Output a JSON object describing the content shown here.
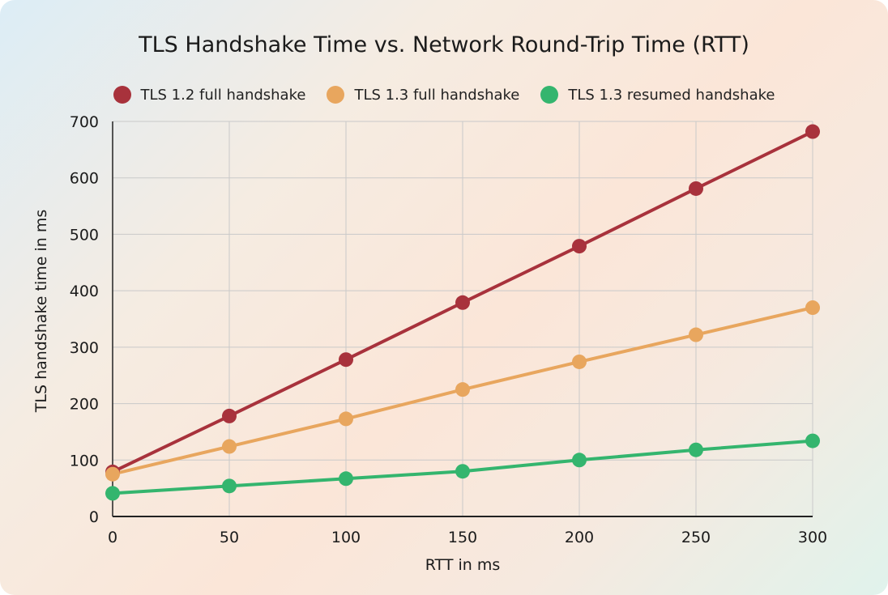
{
  "chart_data": {
    "type": "line",
    "title": "TLS Handshake Time vs. Network Round-Trip Time (RTT)",
    "xlabel": "RTT in ms",
    "ylabel": "TLS handshake time in ms",
    "x": [
      0,
      50,
      100,
      150,
      200,
      250,
      300
    ],
    "xlim": [
      0,
      300
    ],
    "ylim": [
      0,
      700
    ],
    "xticks": [
      0,
      50,
      100,
      150,
      200,
      250,
      300
    ],
    "yticks": [
      0,
      100,
      200,
      300,
      400,
      500,
      600,
      700
    ],
    "grid": true,
    "legend_position": "top",
    "series": [
      {
        "name": "TLS 1.2 full handshake",
        "color": "#a8323c",
        "values": [
          79,
          178,
          278,
          379,
          479,
          581,
          682
        ]
      },
      {
        "name": "TLS 1.3 full handshake",
        "color": "#e8a65e",
        "values": [
          75,
          124,
          173,
          225,
          274,
          322,
          370
        ]
      },
      {
        "name": "TLS 1.3 resumed handshake",
        "color": "#34b56e",
        "values": [
          41,
          54,
          67,
          80,
          100,
          118,
          134
        ]
      }
    ]
  }
}
